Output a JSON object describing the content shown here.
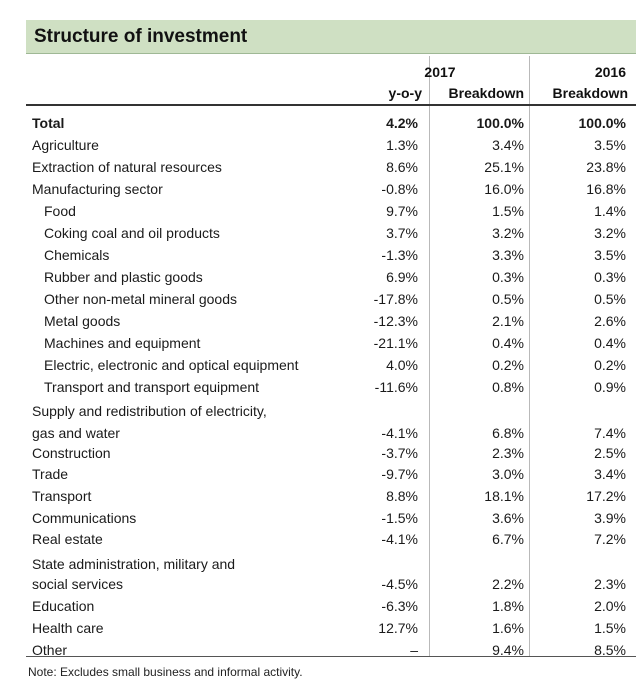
{
  "title": "Structure of investment",
  "headers": {
    "year_2017": "2017",
    "year_2016": "2016",
    "yoy": "y-o-y",
    "breakdown_2017": "Breakdown",
    "breakdown_2016": "Breakdown"
  },
  "rows": [
    {
      "label": "Total",
      "yoy": "4.2%",
      "b2017": "100.0%",
      "b2016": "100.0%",
      "bold": true
    },
    {
      "label": "Agriculture",
      "yoy": "1.3%",
      "b2017": "3.4%",
      "b2016": "3.5%"
    },
    {
      "label": "Extraction of natural resources",
      "yoy": "8.6%",
      "b2017": "25.1%",
      "b2016": "23.8%"
    },
    {
      "label": "Manufacturing sector",
      "yoy": "-0.8%",
      "b2017": "16.0%",
      "b2016": "16.8%"
    },
    {
      "label": "Food",
      "yoy": "9.7%",
      "b2017": "1.5%",
      "b2016": "1.4%",
      "indent": true
    },
    {
      "label": "Coking coal and oil products",
      "yoy": "3.7%",
      "b2017": "3.2%",
      "b2016": "3.2%",
      "indent": true
    },
    {
      "label": "Chemicals",
      "yoy": "-1.3%",
      "b2017": "3.3%",
      "b2016": "3.5%",
      "indent": true
    },
    {
      "label": "Rubber and plastic goods",
      "yoy": "6.9%",
      "b2017": "0.3%",
      "b2016": "0.3%",
      "indent": true
    },
    {
      "label": "Other non-metal mineral goods",
      "yoy": "-17.8%",
      "b2017": "0.5%",
      "b2016": "0.5%",
      "indent": true
    },
    {
      "label": "Metal goods",
      "yoy": "-12.3%",
      "b2017": "2.1%",
      "b2016": "2.6%",
      "indent": true
    },
    {
      "label": "Machines and equipment",
      "yoy": "-21.1%",
      "b2017": "0.4%",
      "b2016": "0.4%",
      "indent": true
    },
    {
      "label": "Electric, electronic and optical equipment",
      "yoy": "4.0%",
      "b2017": "0.2%",
      "b2016": "0.2%",
      "indent": true
    },
    {
      "label": "Transport and transport equipment",
      "yoy": "-11.6%",
      "b2017": "0.8%",
      "b2016": "0.9%",
      "indent": true
    },
    {
      "label": "Supply and redistribution of electricity,",
      "yoy": "",
      "b2017": "",
      "b2016": ""
    },
    {
      "label": "gas and water",
      "yoy": "-4.1%",
      "b2017": "6.8%",
      "b2016": "7.4%"
    },
    {
      "label": "Construction",
      "yoy": "-3.7%",
      "b2017": "2.3%",
      "b2016": "2.5%"
    },
    {
      "label": "Trade",
      "yoy": "-9.7%",
      "b2017": "3.0%",
      "b2016": "3.4%"
    },
    {
      "label": "Transport",
      "yoy": "8.8%",
      "b2017": "18.1%",
      "b2016": "17.2%"
    },
    {
      "label": "Communications",
      "yoy": "-1.5%",
      "b2017": "3.6%",
      "b2016": "3.9%"
    },
    {
      "label": "Real estate",
      "yoy": "-4.1%",
      "b2017": "6.7%",
      "b2016": "7.2%"
    },
    {
      "label": "State administration, military and",
      "yoy": "",
      "b2017": "",
      "b2016": ""
    },
    {
      "label": "social services",
      "yoy": "-4.5%",
      "b2017": "2.2%",
      "b2016": "2.3%"
    },
    {
      "label": "Education",
      "yoy": "-6.3%",
      "b2017": "1.8%",
      "b2016": "2.0%"
    },
    {
      "label": "Health care",
      "yoy": "12.7%",
      "b2017": "1.6%",
      "b2016": "1.5%"
    },
    {
      "label": "Other",
      "yoy": "–",
      "b2017": "9.4%",
      "b2016": "8.5%"
    }
  ],
  "note": "Note: Excludes small business and informal activity."
}
